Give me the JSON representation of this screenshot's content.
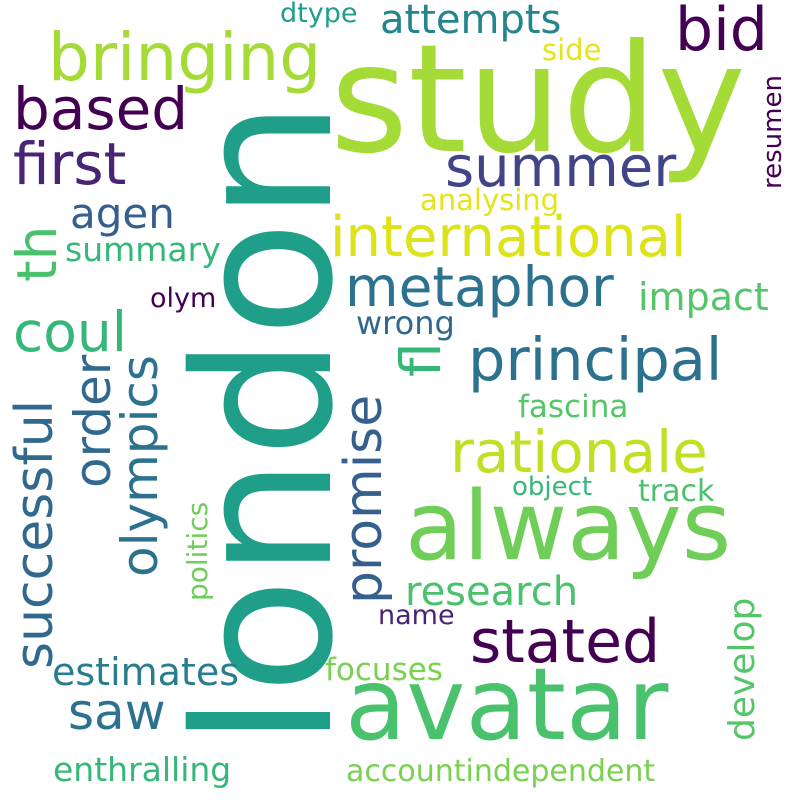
{
  "words": [
    {
      "text": "study",
      "color": "#a5db36"
    },
    {
      "text": "london",
      "color": "#1f9e89"
    },
    {
      "text": "avatar",
      "color": "#4ac16d"
    },
    {
      "text": "always",
      "color": "#6ece58"
    },
    {
      "text": "bringing",
      "color": "#a5db36"
    },
    {
      "text": "bid",
      "color": "#440154"
    },
    {
      "text": "attempts",
      "color": "#25858e"
    },
    {
      "text": "dtype",
      "color": "#1f9e89"
    },
    {
      "text": "side",
      "color": "#e5e419"
    },
    {
      "text": "based",
      "color": "#440154"
    },
    {
      "text": "first",
      "color": "#482475"
    },
    {
      "text": "summer",
      "color": "#414487"
    },
    {
      "text": "resumen",
      "color": "#440154"
    },
    {
      "text": "analysing",
      "color": "#e5e419"
    },
    {
      "text": "international",
      "color": "#dde318"
    },
    {
      "text": "agen",
      "color": "#355f8d"
    },
    {
      "text": "th",
      "color": "#4ac16d"
    },
    {
      "text": "summary",
      "color": "#35b779"
    },
    {
      "text": "metaphor",
      "color": "#2c728e"
    },
    {
      "text": "impact",
      "color": "#54c568"
    },
    {
      "text": "olym",
      "color": "#440154"
    },
    {
      "text": "coul",
      "color": "#35b779"
    },
    {
      "text": "wrong",
      "color": "#31688e"
    },
    {
      "text": "principal",
      "color": "#2c728e"
    },
    {
      "text": "fl",
      "color": "#35b779"
    },
    {
      "text": "order",
      "color": "#31688e"
    },
    {
      "text": "olympics",
      "color": "#2c728e"
    },
    {
      "text": "fascina",
      "color": "#54c568"
    },
    {
      "text": "rationale",
      "color": "#c2df23"
    },
    {
      "text": "successful",
      "color": "#31688e"
    },
    {
      "text": "promise",
      "color": "#355f8d"
    },
    {
      "text": "object",
      "color": "#35b779"
    },
    {
      "text": "track",
      "color": "#4ac16d"
    },
    {
      "text": "politics",
      "color": "#6ece58"
    },
    {
      "text": "research",
      "color": "#4ac16d"
    },
    {
      "text": "name",
      "color": "#482475"
    },
    {
      "text": "develop",
      "color": "#54c568"
    },
    {
      "text": "stated",
      "color": "#440154"
    },
    {
      "text": "estimates",
      "color": "#287d8e"
    },
    {
      "text": "focuses",
      "color": "#7ad151"
    },
    {
      "text": "saw",
      "color": "#2c728e"
    },
    {
      "text": "enthralling",
      "color": "#35b779"
    },
    {
      "text": "accountindependent",
      "color": "#7ad151"
    }
  ]
}
